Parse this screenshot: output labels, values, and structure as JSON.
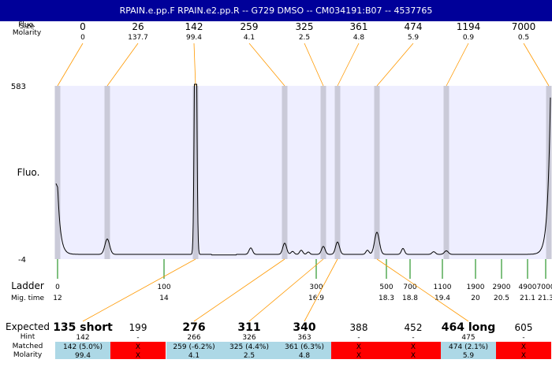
{
  "title": "RPAIN.e.pp.F  RPAIN.e2.pp.R -- G729 DMSO -- CM034191:B07 -- 4537765",
  "colors": {
    "title_bg": "#000099",
    "title_fg": "#ffffff",
    "plot_bg": "#eeeeff",
    "marker_band": "#cacad8",
    "trace": "#000000",
    "connector": "#ff9900",
    "ladder_tick": "#008000",
    "match_ok": "#add8e6",
    "match_fail": "#ff0000"
  },
  "labels": {
    "size_header": "Size",
    "fluo_header": "Fluo.",
    "molarity_header": "Molarity",
    "y_label": "Fluo.",
    "ladder": "Ladder",
    "mig_time": "Mig. time",
    "expected": "Expected",
    "hint": "Hint",
    "matched": "Matched",
    "molarity": "Molarity"
  },
  "chart_data": {
    "type": "line",
    "ylim": [
      -4,
      583
    ],
    "y_ticks": [
      "583",
      "-4"
    ],
    "peaks": [
      {
        "size": "0",
        "molarity": "0"
      },
      {
        "size": "26",
        "molarity": "137.7"
      },
      {
        "size": "142",
        "molarity": "99.4"
      },
      {
        "size": "259",
        "molarity": "4.1"
      },
      {
        "size": "325",
        "molarity": "2.5"
      },
      {
        "size": "361",
        "molarity": "4.8"
      },
      {
        "size": "474",
        "molarity": "5.9"
      },
      {
        "size": "1194",
        "molarity": "0.9"
      },
      {
        "size": "7000",
        "molarity": "0.5"
      }
    ],
    "ladder": [
      {
        "size": "0",
        "mig_time": "12"
      },
      {
        "size": "100",
        "mig_time": "14"
      },
      {
        "size": "300",
        "mig_time": "16.9"
      },
      {
        "size": "500",
        "mig_time": "18.3"
      },
      {
        "size": "700",
        "mig_time": "18.8"
      },
      {
        "size": "1100",
        "mig_time": "19.4"
      },
      {
        "size": "1900",
        "mig_time": "20"
      },
      {
        "size": "2900",
        "mig_time": "20.5"
      },
      {
        "size": "4900",
        "mig_time": "21.1"
      },
      {
        "size": "7000",
        "mig_time": "21.3"
      }
    ],
    "expected": [
      {
        "label": "135 short",
        "bold": true,
        "hint": "142",
        "matched": "142 (5.0%)",
        "molarity": "99.4",
        "ok": true
      },
      {
        "label": "199",
        "bold": false,
        "hint": "-",
        "matched": "X",
        "molarity": "X",
        "ok": false
      },
      {
        "label": "276",
        "bold": true,
        "hint": "266",
        "matched": "259 (-6.2%)",
        "molarity": "4.1",
        "ok": true
      },
      {
        "label": "311",
        "bold": true,
        "hint": "326",
        "matched": "325 (4.4%)",
        "molarity": "2.5",
        "ok": true
      },
      {
        "label": "340",
        "bold": true,
        "hint": "363",
        "matched": "361 (6.3%)",
        "molarity": "4.8",
        "ok": true
      },
      {
        "label": "388",
        "bold": false,
        "hint": "-",
        "matched": "X",
        "molarity": "X",
        "ok": false
      },
      {
        "label": "452",
        "bold": false,
        "hint": "-",
        "matched": "X",
        "molarity": "X",
        "ok": false
      },
      {
        "label": "464 long",
        "bold": true,
        "hint": "475",
        "matched": "474 (2.1%)",
        "molarity": "5.9",
        "ok": true
      },
      {
        "label": "605",
        "bold": false,
        "hint": "-",
        "matched": "X",
        "molarity": "X",
        "ok": false
      }
    ]
  }
}
